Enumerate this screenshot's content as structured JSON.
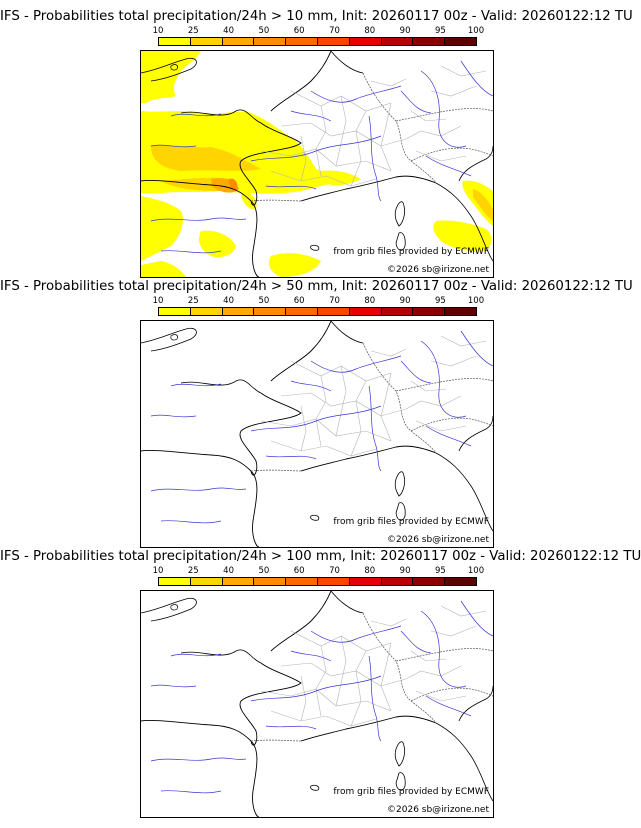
{
  "colorbar": {
    "labels": [
      "10",
      "25",
      "40",
      "50",
      "60",
      "70",
      "80",
      "90",
      "95",
      "100"
    ],
    "colors": [
      "#ffff00",
      "#ffd400",
      "#ffaa00",
      "#ff8c00",
      "#ff6a00",
      "#ff4400",
      "#e60000",
      "#b80000",
      "#8a0000",
      "#5c0000"
    ]
  },
  "credits": {
    "source": "from grib files provided by ECMWF",
    "copyright": "©2026 sb@irizone.net"
  },
  "panels": [
    {
      "title": "IFS - Probabilities total precipitation/24h > 10 mm, Init: 20260117 00z - Valid: 20260122:12 TU"
    },
    {
      "title": "IFS - Probabilities total precipitation/24h > 50 mm, Init: 20260117 00z - Valid: 20260122:12 TU"
    },
    {
      "title": "IFS - Probabilities total precipitation/24h > 100 mm, Init: 20260117 00z - Valid: 20260122:12 TU"
    }
  ]
}
